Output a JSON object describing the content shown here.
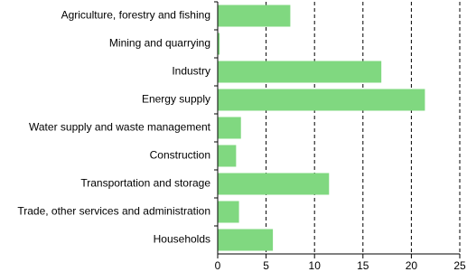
{
  "chart_data": {
    "type": "bar",
    "orientation": "horizontal",
    "categories": [
      "Agriculture, forestry and fishing",
      "Mining and quarrying",
      "Industry",
      "Energy supply",
      "Water supply and waste management",
      "Construction",
      "Transportation and storage",
      "Trade, other services and administration",
      "Households"
    ],
    "values": [
      7.5,
      0.2,
      16.9,
      21.4,
      2.4,
      1.9,
      11.5,
      2.2,
      5.7
    ],
    "color": "#80d880",
    "xlim": [
      0,
      25
    ],
    "xticks": [
      0,
      5,
      10,
      15,
      20,
      25
    ],
    "grid": true
  }
}
